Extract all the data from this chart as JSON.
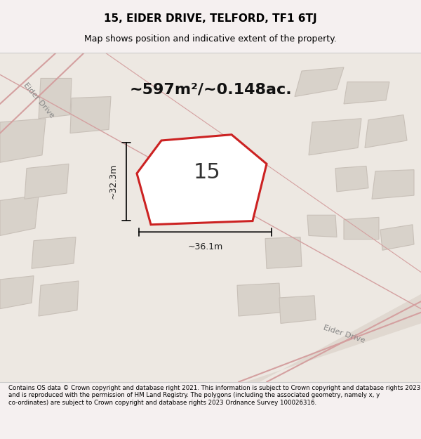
{
  "title": "15, EIDER DRIVE, TELFORD, TF1 6TJ",
  "subtitle": "Map shows position and indicative extent of the property.",
  "area_text": "~597m²/~0.148ac.",
  "property_number": "15",
  "dim_horizontal": "~36.1m",
  "dim_vertical": "~32.3m",
  "footer": "Contains OS data © Crown copyright and database right 2021. This information is subject to Crown copyright and database rights 2023 and is reproduced with the permission of HM Land Registry. The polygons (including the associated geometry, namely x, y co-ordinates) are subject to Crown copyright and database rights 2023 Ordnance Survey 100026316.",
  "bg_color": "#f5f0eb",
  "map_bg": "#f0ece6",
  "road_color": "#e8b8b8",
  "building_color": "#d8d0c8",
  "building_edge": "#c0b8b0",
  "highlight_color": "#cc2222",
  "highlight_fill": "#ffffff",
  "road_label_color": "#888888",
  "road_label1": "Eider Drive",
  "road_label2": "Eider Drive"
}
